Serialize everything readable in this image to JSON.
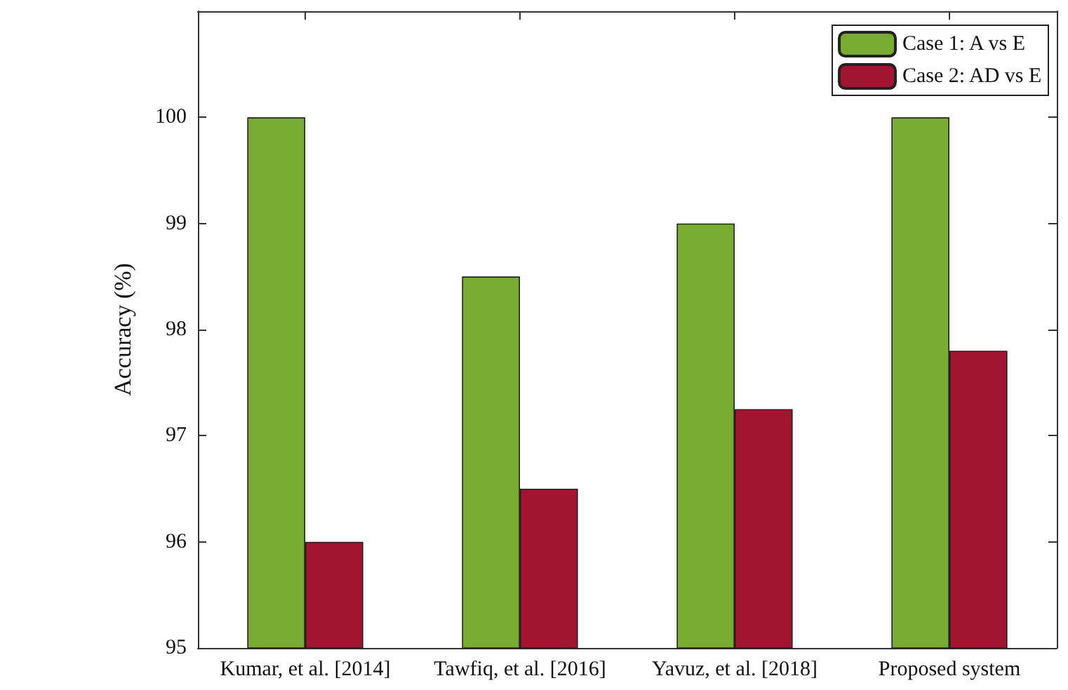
{
  "chart_data": {
    "type": "bar",
    "ylabel": "Accuracy (%)",
    "categories": [
      "Kumar, et al. [2014]",
      "Tawfiq, et al. [2016]",
      "Yavuz, et al. [2018]",
      "Proposed system"
    ],
    "series": [
      {
        "name": "Case 1: A vs E",
        "color": "#77ac30",
        "values": [
          100,
          98.5,
          99,
          100
        ]
      },
      {
        "name": "Case 2: AD vs E",
        "color": "#a2142f",
        "values": [
          96,
          96.5,
          97.25,
          97.8
        ]
      }
    ],
    "ylim": [
      95,
      101
    ],
    "yticks": [
      95,
      96,
      97,
      98,
      99,
      100
    ],
    "grid": false,
    "legend": "top right"
  }
}
